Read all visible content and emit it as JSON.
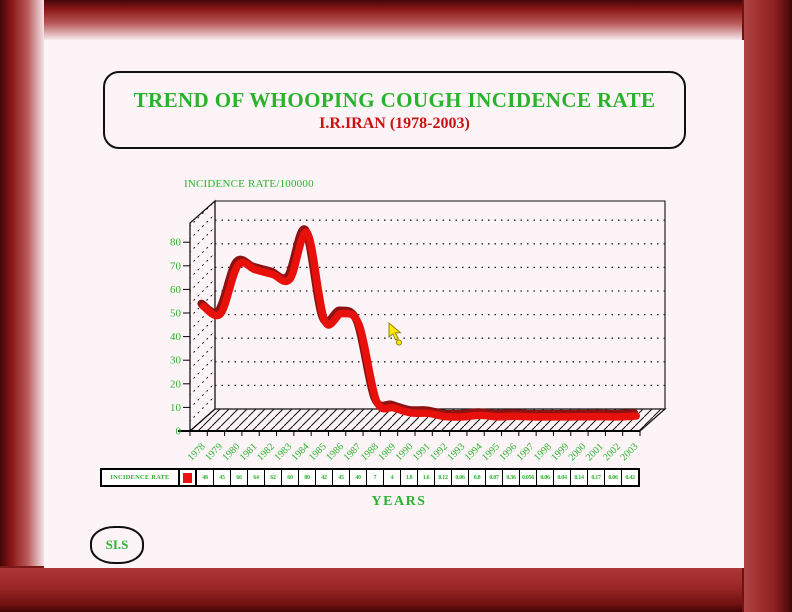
{
  "window": {
    "kind": "presentation-slide"
  },
  "title_box": {
    "title": "TREND OF WHOOPING COUGH INCIDENCE RATE",
    "subtitle": "I.R.IRAN (1978-2003)"
  },
  "chart_data": {
    "type": "line",
    "style": "3d-ribbon-line",
    "title": "TREND OF WHOOPING COUGH INCIDENCE RATE I.R.IRAN (1978-2003)",
    "ylabel": "INCIDENCE RATE/100000",
    "xlabel": "YEARS",
    "categories": [
      1978,
      1979,
      1980,
      1981,
      1982,
      1983,
      1984,
      1985,
      1986,
      1987,
      1988,
      1989,
      1990,
      1991,
      1992,
      1993,
      1994,
      1995,
      1996,
      1997,
      1998,
      1999,
      2000,
      2001,
      2002,
      2003
    ],
    "series": [
      {
        "name": "INCIDENCE RATE",
        "color": "#e8100a",
        "values": [
          48,
          45,
          66,
          64,
          62,
          60,
          80,
          42,
          45,
          40,
          7,
          4,
          1.8,
          1.6,
          0.12,
          0.06,
          0.8,
          0.07,
          0.36,
          0.056,
          0.06,
          0.04,
          0.14,
          0.17,
          0.06,
          0.42
        ]
      }
    ],
    "ylim": [
      0,
      90
    ],
    "yticks": [
      0,
      10,
      20,
      30,
      40,
      50,
      60,
      70,
      80
    ],
    "grid": true,
    "gridline_style": "dotted",
    "legend_position": "bottom-table"
  },
  "table": {
    "row_label": "INCIDENCE RATE",
    "legend_color": "#ee1111"
  },
  "labels": {
    "x_axis_title": "YEARS",
    "signature": "SI.S"
  },
  "cursor": {
    "shape": "arrow-pointer",
    "fill": "#ffe900"
  },
  "colors": {
    "green_text": "#28b42a",
    "red_text": "#cc1111",
    "line_red": "#e8100a",
    "slide_bg": "#fdf4f8",
    "frame_dark": "#420707",
    "frame_mid": "#9a2525"
  }
}
